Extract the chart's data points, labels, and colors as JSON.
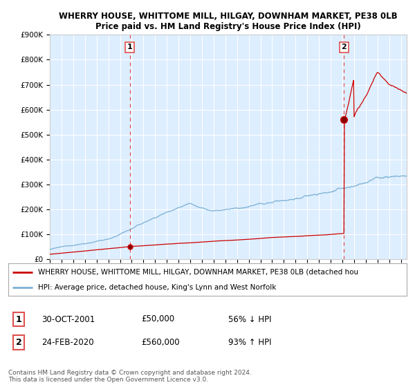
{
  "title": "WHERRY HOUSE, WHITTOME MILL, HILGAY, DOWNHAM MARKET, PE38 0LB",
  "subtitle": "Price paid vs. HM Land Registry's House Price Index (HPI)",
  "ylabel_ticks": [
    "£0",
    "£100K",
    "£200K",
    "£300K",
    "£400K",
    "£500K",
    "£600K",
    "£700K",
    "£800K",
    "£900K"
  ],
  "ytick_values": [
    0,
    100000,
    200000,
    300000,
    400000,
    500000,
    600000,
    700000,
    800000,
    900000
  ],
  "ylim": [
    0,
    900000
  ],
  "xlim_start": 1995.0,
  "xlim_end": 2025.5,
  "t1_x": 2001.83,
  "t1_price": 50000,
  "t2_x": 2020.15,
  "t2_price": 560000,
  "hpi_color": "#7ab0d4",
  "price_color": "#cc0000",
  "dashed_color": "#e05050",
  "bg_color": "#ddeeff",
  "legend_label_red": "WHERRY HOUSE, WHITTOME MILL, HILGAY, DOWNHAM MARKET, PE38 0LB (detached hou",
  "legend_label_blue": "HPI: Average price, detached house, King's Lynn and West Norfolk",
  "annotation1_date": "30-OCT-2001",
  "annotation1_price": "£50,000",
  "annotation1_hpi": "56% ↓ HPI",
  "annotation2_date": "24-FEB-2020",
  "annotation2_price": "£560,000",
  "annotation2_hpi": "93% ↑ HPI",
  "footer": "Contains HM Land Registry data © Crown copyright and database right 2024.\nThis data is licensed under the Open Government Licence v3.0.",
  "background_color": "#ffffff"
}
